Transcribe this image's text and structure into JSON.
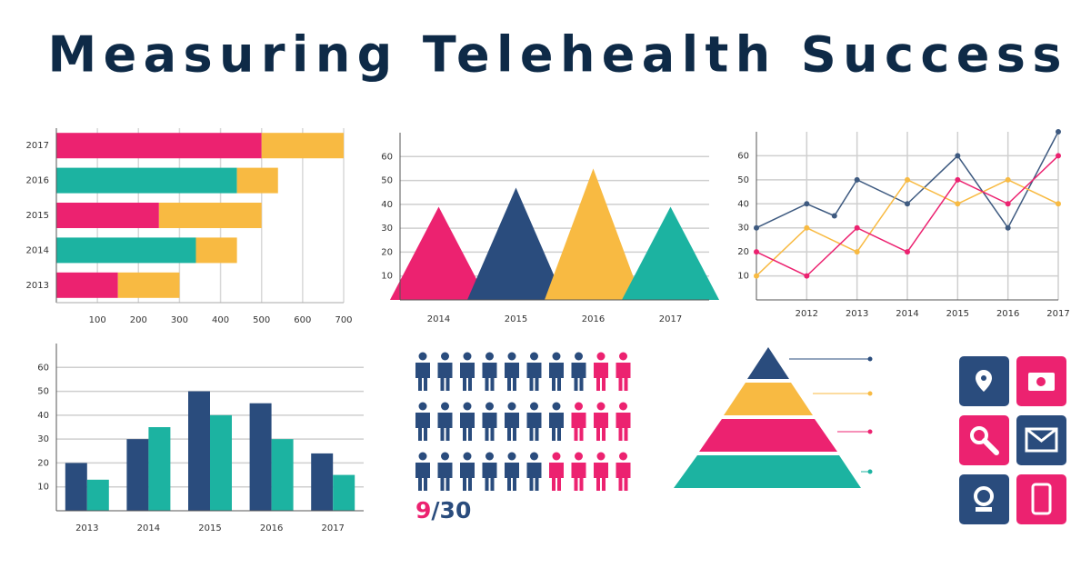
{
  "title": "Measuring Telehealth Success",
  "chart_data": [
    {
      "type": "hbar-stacked",
      "categories": [
        "2017",
        "2016",
        "2015",
        "2014",
        "2013"
      ],
      "series": [
        {
          "colors": [
            "#ec2270",
            "#1cb3a1",
            "#ec2270",
            "#1cb3a1",
            "#ec2270"
          ],
          "values": [
            500,
            440,
            250,
            340,
            150
          ]
        },
        {
          "color": "#f8ba42",
          "values": [
            200,
            100,
            250,
            100,
            150
          ]
        }
      ],
      "xlim": [
        0,
        700
      ],
      "xticks": [
        100,
        200,
        300,
        400,
        500,
        600,
        700
      ],
      "grid": true
    },
    {
      "type": "peak",
      "categories": [
        "2014",
        "2015",
        "2016",
        "2017"
      ],
      "values": [
        39,
        47,
        55,
        39
      ],
      "colors": [
        "#ec2270",
        "#2a4c7d",
        "#f8ba42",
        "#1cb3a1"
      ],
      "ylim": [
        0,
        70
      ],
      "yticks": [
        10,
        20,
        30,
        40,
        50,
        60
      ],
      "grid": true
    },
    {
      "type": "line",
      "series": [
        {
          "color": "#3e5a80",
          "x": [
            2011,
            2012,
            2012.55,
            2013,
            2014,
            2015,
            2016,
            2017
          ],
          "values": [
            30,
            40,
            35,
            50,
            40,
            60,
            30,
            70
          ]
        },
        {
          "color": "#f8ba42",
          "x": [
            2011,
            2012,
            2013,
            2014,
            2015,
            2016,
            2017
          ],
          "values": [
            10,
            30,
            20,
            50,
            40,
            50,
            40
          ]
        },
        {
          "color": "#ec2270",
          "x": [
            2011,
            2012,
            2013,
            2014,
            2015,
            2016,
            2017
          ],
          "values": [
            20,
            10,
            30,
            20,
            50,
            40,
            60
          ]
        }
      ],
      "xlim": [
        2011,
        2017
      ],
      "xticks": [
        2012,
        2013,
        2014,
        2015,
        2016,
        2017
      ],
      "ylim": [
        0,
        70
      ],
      "yticks": [
        10,
        20,
        30,
        40,
        50,
        60
      ],
      "grid": true
    },
    {
      "type": "bar-grouped",
      "categories": [
        "2013",
        "2014",
        "2015",
        "2016",
        "2017"
      ],
      "series": [
        {
          "color": "#2a4c7d",
          "values": [
            20,
            30,
            50,
            45,
            24
          ]
        },
        {
          "color": "#1cb3a1",
          "values": [
            13,
            35,
            40,
            30,
            15
          ]
        }
      ],
      "ylim": [
        0,
        70
      ],
      "yticks": [
        10,
        20,
        30,
        40,
        50,
        60
      ],
      "grid": true
    },
    {
      "type": "pictogram",
      "highlighted": 9,
      "separator": "/",
      "total": 30,
      "highlighted_per_row": [
        2,
        3,
        4
      ],
      "color": "#2a4c7d",
      "highlight_color": "#ec2270"
    }
  ]
}
